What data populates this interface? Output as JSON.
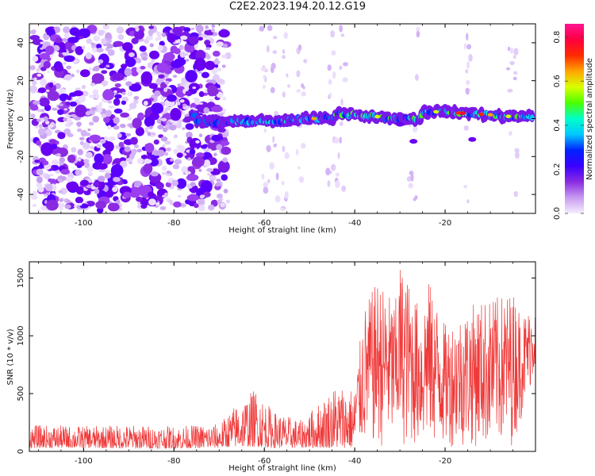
{
  "title": "C2E2.2023.194.20.12.G19",
  "chart_data": [
    {
      "type": "heatmap",
      "xlabel": "Height of straight line (km)",
      "ylabel": "Frequency (Hz)",
      "xlim": [
        -112,
        0
      ],
      "ylim": [
        -50,
        50
      ],
      "xticks": [
        -100,
        -80,
        -60,
        -40,
        -20
      ],
      "yticks": [
        40,
        20,
        0,
        -20,
        -40
      ],
      "colorbar": {
        "label": "Normalized spectral amplitude",
        "lim": [
          0.0,
          0.86
        ],
        "ticks": [
          0.0,
          0.2,
          0.4,
          0.6,
          0.8
        ]
      },
      "trace": [
        {
          "x": -75,
          "y": -1.5
        },
        {
          "x": -70,
          "y": -2
        },
        {
          "x": -66,
          "y": -1.5
        },
        {
          "x": -60,
          "y": -1.5
        },
        {
          "x": -55,
          "y": -1
        },
        {
          "x": -50,
          "y": 0
        },
        {
          "x": -45,
          "y": 0
        },
        {
          "x": -44,
          "y": 2.5
        },
        {
          "x": -40,
          "y": 2
        },
        {
          "x": -35,
          "y": 1
        },
        {
          "x": -30,
          "y": 0
        },
        {
          "x": -26,
          "y": -1
        },
        {
          "x": -25,
          "y": 3
        },
        {
          "x": -20,
          "y": 4
        },
        {
          "x": -17,
          "y": 3
        },
        {
          "x": -10,
          "y": 2
        },
        {
          "x": -5,
          "y": 1
        },
        {
          "x": 0,
          "y": 1
        }
      ]
    },
    {
      "type": "line",
      "xlabel": "Height of straight line (km)",
      "ylabel": "SNR (10 * v/v)",
      "xlim": [
        -112,
        0
      ],
      "ylim": [
        0,
        1640
      ],
      "xticks": [
        -100,
        -80,
        -60,
        -40,
        -20
      ],
      "yticks": [
        0,
        500,
        1000,
        1500
      ],
      "envelope": [
        {
          "x": -112,
          "low": 30,
          "high": 230
        },
        {
          "x": -100,
          "low": 30,
          "high": 220
        },
        {
          "x": -90,
          "low": 25,
          "high": 230
        },
        {
          "x": -80,
          "low": 25,
          "high": 220
        },
        {
          "x": -70,
          "low": 30,
          "high": 240
        },
        {
          "x": -67,
          "low": 40,
          "high": 380
        },
        {
          "x": -62,
          "low": 40,
          "high": 550
        },
        {
          "x": -58,
          "low": 30,
          "high": 350
        },
        {
          "x": -52,
          "low": 30,
          "high": 270
        },
        {
          "x": -48,
          "low": 30,
          "high": 420
        },
        {
          "x": -44,
          "low": 30,
          "high": 600
        },
        {
          "x": -40,
          "low": 30,
          "high": 550
        },
        {
          "x": -38,
          "low": 40,
          "high": 1240
        },
        {
          "x": -35,
          "low": 30,
          "high": 1480
        },
        {
          "x": -31,
          "low": 40,
          "high": 1300
        },
        {
          "x": -30,
          "low": 40,
          "high": 1640
        },
        {
          "x": -25,
          "low": 40,
          "high": 1200
        },
        {
          "x": -24,
          "low": 40,
          "high": 1520
        },
        {
          "x": -20,
          "low": 40,
          "high": 1100
        },
        {
          "x": -13,
          "low": 40,
          "high": 1300
        },
        {
          "x": -9,
          "low": 40,
          "high": 1330
        },
        {
          "x": -5,
          "low": 50,
          "high": 1390
        },
        {
          "x": -3,
          "low": 300,
          "high": 1200
        },
        {
          "x": 0,
          "low": 700,
          "high": 1250
        }
      ],
      "color": "#ef3a3a"
    }
  ],
  "colors": {
    "line": "#ef3a3a",
    "colormap": [
      "#f5eefd",
      "#c89af0",
      "#8a2be2",
      "#3a00ff",
      "#0022ff",
      "#00c8ff",
      "#00ffc8",
      "#4bff00",
      "#d8ff00",
      "#ffa500",
      "#ff2a00",
      "#ff0040",
      "#ff1493"
    ]
  }
}
